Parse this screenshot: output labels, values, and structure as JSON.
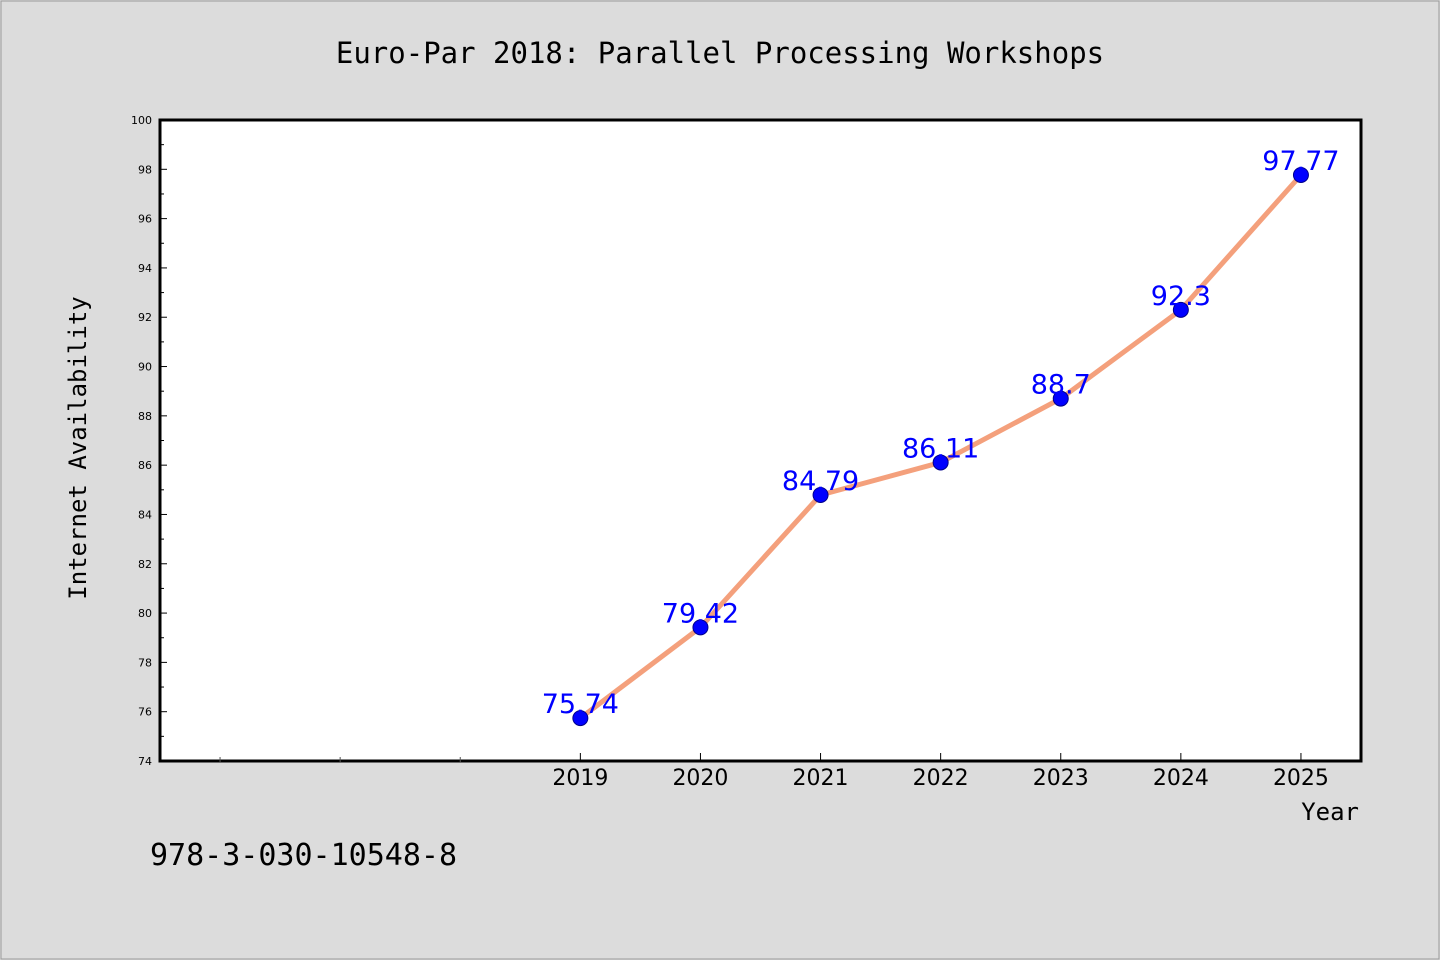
{
  "chart_data": {
    "type": "line",
    "title": "Euro-Par 2018: Parallel Processing Workshops",
    "xlabel": "Year",
    "ylabel": "Internet Availability",
    "x": [
      "2019",
      "2020",
      "2021",
      "2022",
      "2023",
      "2024",
      "2025"
    ],
    "series": [
      {
        "values": [
          75.74,
          79.42,
          84.79,
          86.11,
          88.7,
          92.3,
          97.77
        ],
        "data_labels": [
          "75.74",
          "79.42",
          "84.79",
          "86.11",
          "88.7",
          "92.3",
          "97.77"
        ],
        "line_color": "#f4a07c",
        "marker_color": "#0000ff"
      }
    ],
    "ylim": [
      74,
      100
    ],
    "y_ticks": [
      74,
      76,
      78,
      80,
      82,
      84,
      86,
      88,
      90,
      92,
      94,
      96,
      98,
      100
    ],
    "x_range_slots": [
      -3.5,
      6.5
    ],
    "grid": false,
    "legend": "none",
    "label_color": "#0000ff"
  },
  "footnote": "978-3-030-10548-8",
  "colors": {
    "background": "#dcdcdc",
    "plot_area": "#ffffff",
    "axis": "#000000"
  }
}
